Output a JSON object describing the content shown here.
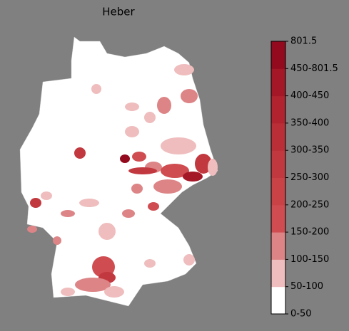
{
  "title": "Heber",
  "colorbar": {
    "labels": [
      "0-50",
      "50-100",
      "100-150",
      "150-200",
      "200-250",
      "250-300",
      "300-350",
      "350-400",
      "400-450",
      "450-801.5",
      "801.5"
    ],
    "colors": [
      "#ffffff",
      "#efbdbd",
      "#dd8486",
      "#cf4c50",
      "#c94246",
      "#c2383f",
      "#ba2e37",
      "#b0232f",
      "#a41727",
      "#930a1f"
    ]
  }
}
